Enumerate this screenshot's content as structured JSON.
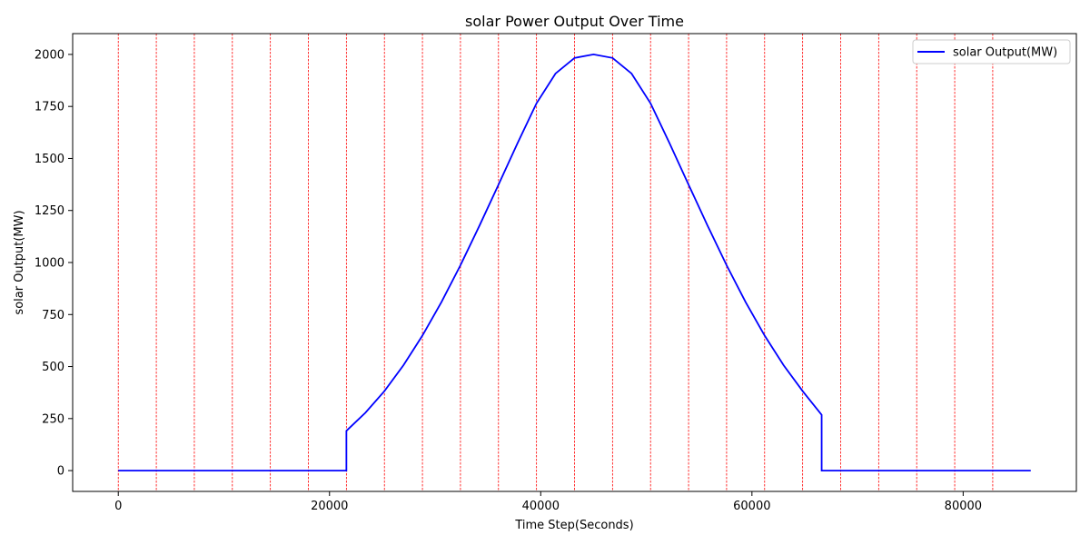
{
  "chart_data": {
    "type": "line",
    "title": "solar Power Output Over Time",
    "xlabel": "Time Step(Seconds)",
    "ylabel": "solar Output(MW)",
    "xlim": [
      -4320,
      90720
    ],
    "ylim": [
      -100,
      2100
    ],
    "xticks": [
      0,
      20000,
      40000,
      60000,
      80000
    ],
    "xtick_labels": [
      "0",
      "20000",
      "40000",
      "60000",
      "80000"
    ],
    "yticks": [
      0,
      250,
      500,
      750,
      1000,
      1250,
      1500,
      1750,
      2000
    ],
    "ytick_labels": [
      "0",
      "250",
      "500",
      "750",
      "1000",
      "1250",
      "1500",
      "1750",
      "2000"
    ],
    "grid": false,
    "legend_position": "top-right",
    "vertical_marker_lines": {
      "color": "#ff0000",
      "style": "dashed",
      "x": [
        0,
        3600,
        7200,
        10800,
        14400,
        18000,
        21600,
        25200,
        28800,
        32400,
        36000,
        39600,
        43200,
        46800,
        50400,
        54000,
        57600,
        61200,
        64800,
        68400,
        72000,
        75600,
        79200,
        82800
      ]
    },
    "series": [
      {
        "name": "solar Output(MW)",
        "color": "#0000ff",
        "x": [
          0,
          21599,
          21600,
          23400,
          25200,
          27000,
          28800,
          30600,
          32400,
          34200,
          36000,
          37800,
          39600,
          41400,
          43200,
          45000,
          46800,
          48600,
          50400,
          52200,
          54000,
          55800,
          57600,
          59400,
          61200,
          63000,
          64800,
          66600,
          66601,
          86400
        ],
        "values": [
          0,
          0,
          191,
          278,
          382,
          506,
          649,
          810,
          987,
          1177,
          1374,
          1573,
          1765,
          1908,
          1983,
          2000,
          1983,
          1908,
          1765,
          1573,
          1374,
          1177,
          987,
          810,
          649,
          506,
          382,
          268,
          0,
          0
        ]
      }
    ]
  }
}
